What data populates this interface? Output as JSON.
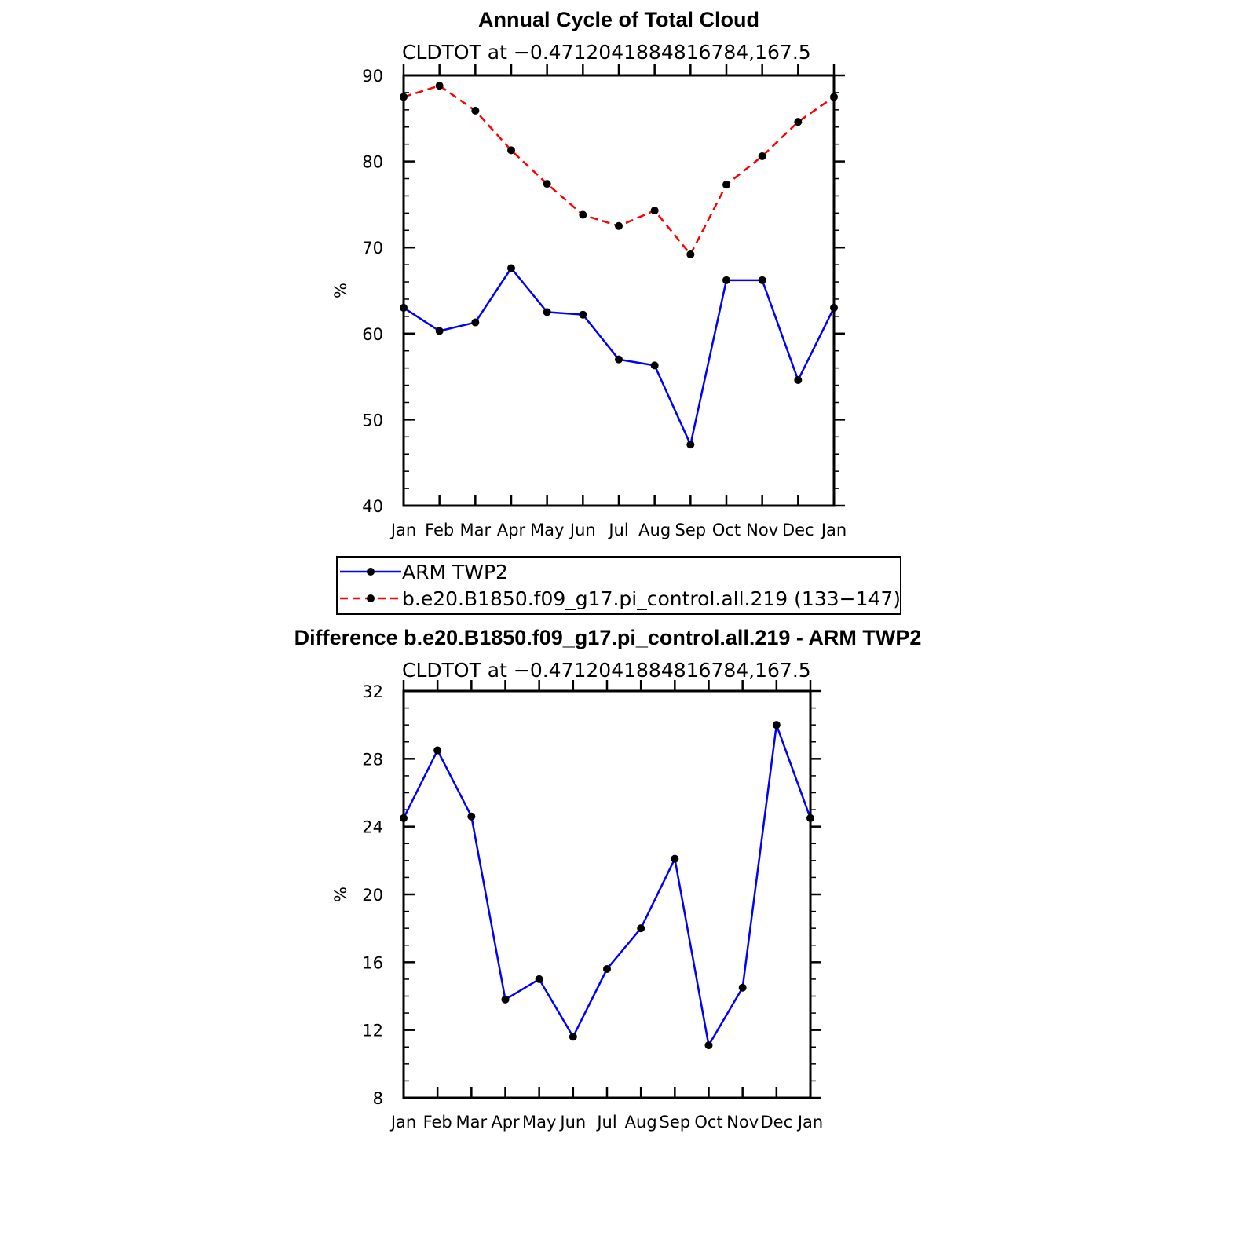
{
  "chart_data": [
    {
      "type": "line",
      "title": "Annual Cycle of Total Cloud",
      "subtitle": "CLDTOT at −0.4712041884816784,167.5",
      "xlabel": "",
      "ylabel": "%",
      "categories": [
        "Jan",
        "Feb",
        "Mar",
        "Apr",
        "May",
        "Jun",
        "Jul",
        "Aug",
        "Sep",
        "Oct",
        "Nov",
        "Dec",
        "Jan"
      ],
      "ylim": [
        40,
        90
      ],
      "yticks": [
        "40",
        "50",
        "60",
        "70",
        "80",
        "90"
      ],
      "series": [
        {
          "name": "ARM TWP2",
          "color": "#0000ff",
          "dash": "solid",
          "values": [
            63.0,
            60.3,
            61.3,
            67.6,
            62.5,
            62.2,
            57.0,
            56.3,
            47.1,
            66.2,
            66.2,
            54.6,
            63.0
          ]
        },
        {
          "name": "b.e20.B1850.f09_g17.pi_control.all.219 (133−147)",
          "color": "#ff0000",
          "dash": "dashed",
          "values": [
            87.5,
            88.8,
            85.9,
            81.3,
            77.4,
            73.8,
            72.5,
            74.3,
            69.2,
            77.3,
            80.6,
            84.6,
            87.5
          ]
        }
      ],
      "legend": {
        "placement": "bottom",
        "entries": [
          "ARM TWP2",
          "b.e20.B1850.f09_g17.pi_control.all.219 (133−147)"
        ]
      }
    },
    {
      "type": "line",
      "title": "Difference b.e20.B1850.f09_g17.pi_control.all.219 - ARM TWP2",
      "subtitle": "CLDTOT at −0.4712041884816784,167.5",
      "xlabel": "",
      "ylabel": "%",
      "categories": [
        "Jan",
        "Feb",
        "Mar",
        "Apr",
        "May",
        "Jun",
        "Jul",
        "Aug",
        "Sep",
        "Oct",
        "Nov",
        "Dec",
        "Jan"
      ],
      "ylim": [
        8,
        32
      ],
      "yticks": [
        "8",
        "12",
        "16",
        "20",
        "24",
        "28",
        "32"
      ],
      "series": [
        {
          "name": "Difference",
          "color": "#0000ff",
          "dash": "solid",
          "values": [
            24.5,
            28.5,
            24.6,
            13.8,
            15.0,
            11.6,
            15.6,
            18.0,
            22.1,
            11.1,
            14.5,
            30.0,
            24.5
          ]
        }
      ]
    }
  ]
}
